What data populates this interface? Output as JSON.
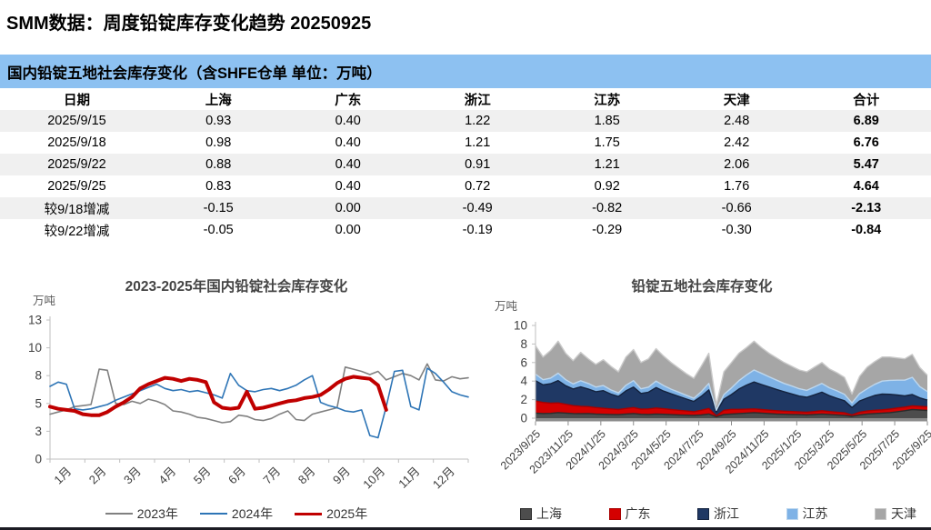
{
  "page": {
    "title": "SMM数据：周度铅锭库存变化趋势 20250925",
    "banner": "国内铅锭五地社会库存变化（含SHFE仓单 单位：万吨）",
    "colors": {
      "banner_bg": "#8dc1f1",
      "stripe": "#f0f0f0",
      "bottom_rule": "#1c1c24"
    }
  },
  "table": {
    "headers": [
      "日期",
      "上海",
      "广东",
      "浙江",
      "江苏",
      "天津",
      "合计"
    ],
    "rows": [
      [
        "2025/9/15",
        "0.93",
        "0.40",
        "1.22",
        "1.85",
        "2.48",
        "6.89"
      ],
      [
        "2025/9/18",
        "0.98",
        "0.40",
        "1.21",
        "1.75",
        "2.42",
        "6.76"
      ],
      [
        "2025/9/22",
        "0.88",
        "0.40",
        "0.91",
        "1.21",
        "2.06",
        "5.47"
      ],
      [
        "2025/9/25",
        "0.83",
        "0.40",
        "0.72",
        "0.92",
        "1.76",
        "4.64"
      ],
      [
        "较9/18增减",
        "-0.15",
        "0.00",
        "-0.49",
        "-0.82",
        "-0.66",
        "-2.13"
      ],
      [
        "较9/22增减",
        "-0.05",
        "0.00",
        "-0.19",
        "-0.29",
        "-0.30",
        "-0.84"
      ]
    ]
  },
  "chart_data": [
    {
      "type": "line",
      "title": "2023-2025年国内铅锭社会库存变化",
      "ylabel": "万吨",
      "xlabel": "",
      "ylim": [
        0,
        13
      ],
      "y_tick_labels": [
        "13",
        "10",
        "8",
        "5",
        "3",
        "0"
      ],
      "categories": [
        "1月",
        "2月",
        "3月",
        "4月",
        "5月",
        "6月",
        "7月",
        "8月",
        "9月",
        "10月",
        "11月",
        "12月"
      ],
      "grid": false,
      "legend_position": "bottom",
      "series": [
        {
          "name": "2023年",
          "color": "#808080",
          "width": 1.6,
          "values": [
            4.2,
            4.4,
            4.6,
            4.9,
            5.0,
            5.1,
            8.4,
            8.3,
            5.2,
            5.1,
            5.4,
            5.2,
            5.6,
            5.4,
            5.1,
            4.5,
            4.4,
            4.2,
            3.9,
            3.8,
            3.6,
            3.4,
            3.5,
            4.1,
            4.0,
            3.7,
            3.6,
            3.8,
            4.2,
            4.5,
            3.7,
            3.6,
            4.2,
            4.4,
            4.6,
            4.8,
            8.6,
            8.4,
            8.2,
            7.9,
            8.2,
            7.4,
            7.7,
            8.0,
            7.8,
            7.4,
            8.9,
            7.4,
            7.3,
            7.7,
            7.5,
            7.6
          ]
        },
        {
          "name": "2024年",
          "color": "#2e75b6",
          "width": 1.6,
          "values": [
            6.8,
            7.2,
            7.0,
            4.7,
            4.6,
            4.7,
            4.9,
            5.1,
            5.5,
            5.8,
            6.1,
            6.4,
            6.7,
            7.0,
            6.6,
            6.4,
            6.5,
            6.3,
            6.4,
            6.2,
            6.0,
            5.7,
            8.0,
            6.9,
            6.4,
            6.3,
            6.5,
            6.6,
            6.4,
            6.6,
            6.9,
            7.4,
            7.8,
            5.3,
            5.0,
            4.8,
            4.5,
            4.4,
            4.6,
            2.2,
            2.0,
            4.9,
            8.2,
            8.3,
            4.9,
            4.6,
            8.5,
            8.0,
            7.2,
            6.3,
            6.0,
            5.8
          ]
        },
        {
          "name": "2025年",
          "color": "#c00000",
          "width": 4,
          "values": [
            4.9,
            4.7,
            4.6,
            4.5,
            4.2,
            4.1,
            4.1,
            4.4,
            4.9,
            5.3,
            5.8,
            6.6,
            7.0,
            7.3,
            7.6,
            7.5,
            7.3,
            7.5,
            7.4,
            7.2,
            5.3,
            4.8,
            4.7,
            4.8,
            6.3,
            4.7,
            4.8,
            5.0,
            5.2,
            5.4,
            5.5,
            5.7,
            5.8,
            6.0,
            6.5,
            7.1,
            7.5,
            7.7,
            7.6,
            7.5,
            6.9,
            4.6
          ]
        }
      ]
    },
    {
      "type": "area",
      "title": "铅锭五地社会库存变化",
      "ylabel": "万吨",
      "xlabel": "",
      "ylim": [
        0,
        10
      ],
      "y_tick_labels": [
        "10",
        "8",
        "6",
        "4",
        "2",
        "0"
      ],
      "x_tick_labels": [
        "2023/9/25",
        "2023/11/25",
        "2024/1/25",
        "2024/3/25",
        "2024/5/25",
        "2024/7/25",
        "2024/9/25",
        "2024/11/25",
        "2025/1/25",
        "2025/3/25",
        "2025/5/25",
        "2025/7/25",
        "2025/9/25"
      ],
      "grid": false,
      "legend_position": "bottom",
      "stacked": true,
      "series": [
        {
          "name": "上海",
          "color": "#4d4d4d",
          "edge": "#2b2b2b",
          "values": [
            0.55,
            0.5,
            0.52,
            0.6,
            0.55,
            0.5,
            0.48,
            0.5,
            0.45,
            0.42,
            0.4,
            0.38,
            0.45,
            0.5,
            0.42,
            0.4,
            0.45,
            0.42,
            0.38,
            0.35,
            0.32,
            0.3,
            0.35,
            0.45,
            0.15,
            0.4,
            0.45,
            0.5,
            0.55,
            0.6,
            0.55,
            0.5,
            0.45,
            0.42,
            0.4,
            0.38,
            0.35,
            0.4,
            0.45,
            0.4,
            0.35,
            0.3,
            0.2,
            0.35,
            0.45,
            0.5,
            0.55,
            0.6,
            0.7,
            0.8,
            0.93,
            0.88,
            0.83
          ]
        },
        {
          "name": "广东",
          "color": "#d40000",
          "edge": "#a80000",
          "values": [
            1.3,
            1.2,
            1.1,
            1.05,
            0.95,
            0.85,
            0.8,
            0.75,
            0.7,
            0.65,
            0.6,
            0.55,
            0.6,
            0.65,
            0.55,
            0.6,
            0.65,
            0.6,
            0.55,
            0.5,
            0.45,
            0.4,
            0.5,
            0.6,
            0.1,
            0.45,
            0.5,
            0.45,
            0.42,
            0.4,
            0.38,
            0.36,
            0.35,
            0.33,
            0.32,
            0.3,
            0.3,
            0.32,
            0.35,
            0.32,
            0.3,
            0.28,
            0.15,
            0.3,
            0.32,
            0.35,
            0.35,
            0.38,
            0.4,
            0.4,
            0.4,
            0.4,
            0.4
          ]
        },
        {
          "name": "浙江",
          "color": "#1f3864",
          "edge": "#14233f",
          "values": [
            2.2,
            1.9,
            2.1,
            2.4,
            2.0,
            1.8,
            2.1,
            1.9,
            1.7,
            1.9,
            1.6,
            1.4,
            1.9,
            2.2,
            1.7,
            1.8,
            2.2,
            1.9,
            1.7,
            1.5,
            1.3,
            1.1,
            1.5,
            2.0,
            0.4,
            1.2,
            1.6,
            2.2,
            2.6,
            2.9,
            2.7,
            2.5,
            2.3,
            2.1,
            1.9,
            1.7,
            1.6,
            1.8,
            2.0,
            1.7,
            1.5,
            1.3,
            0.8,
            1.2,
            1.4,
            1.6,
            1.7,
            1.6,
            1.4,
            1.2,
            1.22,
            0.91,
            0.72
          ]
        },
        {
          "name": "江苏",
          "color": "#7eb2e6",
          "edge": "#bdd7ee",
          "values": [
            0.7,
            0.55,
            0.6,
            0.8,
            0.65,
            0.55,
            0.65,
            0.6,
            0.5,
            0.55,
            0.45,
            0.4,
            0.6,
            0.7,
            0.5,
            0.55,
            0.7,
            0.6,
            0.5,
            0.45,
            0.4,
            0.35,
            0.5,
            0.7,
            0.2,
            0.5,
            0.7,
            0.9,
            1.1,
            1.3,
            1.2,
            1.1,
            1.0,
            0.9,
            0.85,
            0.8,
            0.75,
            0.85,
            0.95,
            0.85,
            0.8,
            0.7,
            0.5,
            0.8,
            1.0,
            1.2,
            1.4,
            1.5,
            1.6,
            1.7,
            1.85,
            1.21,
            0.92
          ]
        },
        {
          "name": "天津",
          "color": "#a6a6a6",
          "edge": "#c9c9c9",
          "values": [
            3.05,
            2.45,
            2.98,
            3.45,
            2.85,
            2.5,
            3.07,
            2.65,
            2.45,
            2.78,
            2.55,
            2.27,
            3.05,
            3.35,
            2.83,
            3.05,
            3.5,
            3.18,
            2.87,
            2.6,
            2.33,
            2.15,
            2.75,
            3.25,
            0.55,
            2.45,
            2.75,
            2.95,
            2.95,
            3.1,
            2.77,
            2.54,
            2.4,
            2.25,
            2.13,
            2.02,
            2.0,
            2.13,
            2.25,
            2.03,
            1.95,
            1.82,
            0.95,
            1.85,
            2.33,
            2.45,
            2.6,
            2.52,
            2.4,
            2.3,
            2.48,
            2.06,
            1.76
          ]
        }
      ]
    }
  ]
}
